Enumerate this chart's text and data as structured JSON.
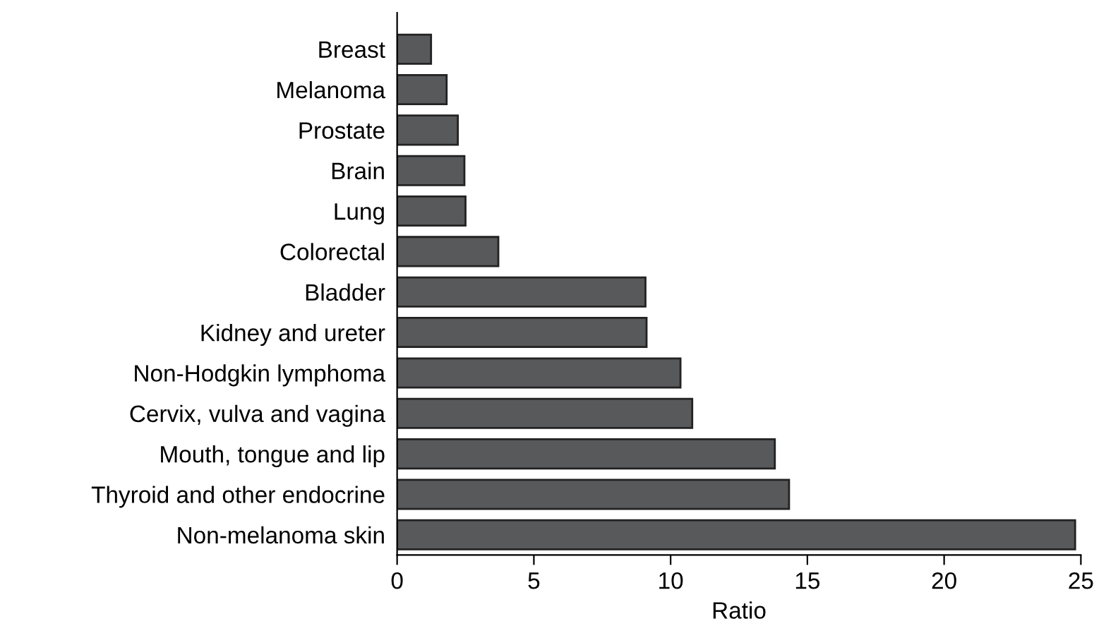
{
  "chart_data": {
    "type": "bar",
    "orientation": "horizontal",
    "xlabel": "Ratio",
    "categories": [
      "Breast",
      "Melanoma",
      "Prostate",
      "Brain",
      "Lung",
      "Colorectal",
      "Bladder",
      "Kidney and ureter",
      "Non-Hodgkin lymphoma",
      "Cervix, vulva and vagina",
      "Mouth, tongue and lip",
      "Thyroid and other endocrine",
      "Non-melanoma skin"
    ],
    "values": [
      1.24,
      1.81,
      2.22,
      2.46,
      2.5,
      3.7,
      9.08,
      9.12,
      10.36,
      10.79,
      13.81,
      14.33,
      24.79
    ],
    "color": "#58595b",
    "xlim": [
      0,
      25
    ],
    "xticks": [
      0,
      5,
      10,
      15,
      20,
      25
    ],
    "grid": false,
    "legend": false
  }
}
